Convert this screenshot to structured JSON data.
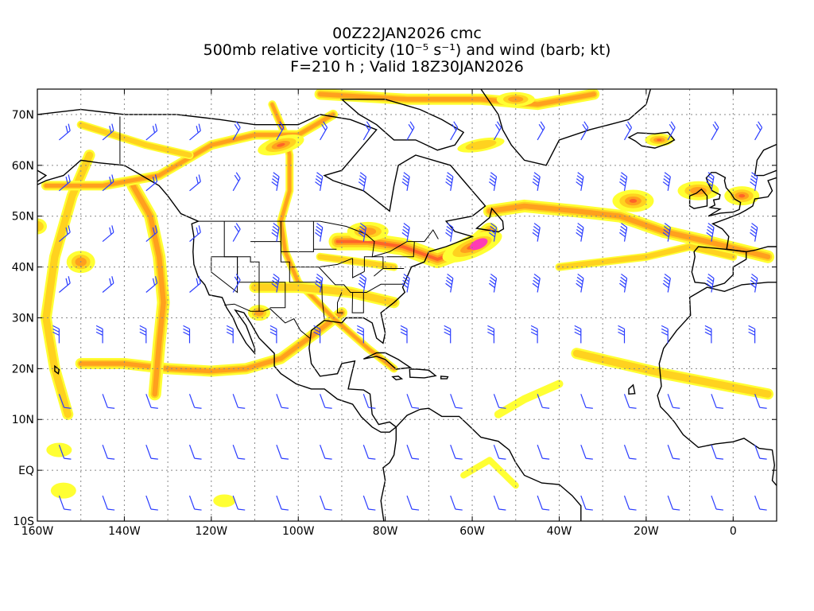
{
  "title": {
    "line1": "00Z22JAN2026 cmc",
    "line2": "500mb relative vorticity (10⁻⁵ s⁻¹) and wind (barb; kt)",
    "line3": "F=210 h ; Valid 18Z30JAN2026"
  },
  "axes": {
    "lon_labels": [
      "160W",
      "140W",
      "120W",
      "100W",
      "80W",
      "60W",
      "40W",
      "20W",
      "0"
    ],
    "lat_labels": [
      "70N",
      "60N",
      "50N",
      "40N",
      "30N",
      "20N",
      "10N",
      "EQ",
      "10S"
    ],
    "lon_range": [
      -160,
      10
    ],
    "lat_range": [
      -10,
      75
    ],
    "grid": "dotted"
  },
  "colors": {
    "vort_low": "#ffff33",
    "vort_mid1": "#ffd21f",
    "vort_mid2": "#ffa01e",
    "vort_high": "#ff6428",
    "vort_max": "#ff3cb4",
    "barb": "#2a3cff",
    "coast": "#000000"
  }
}
